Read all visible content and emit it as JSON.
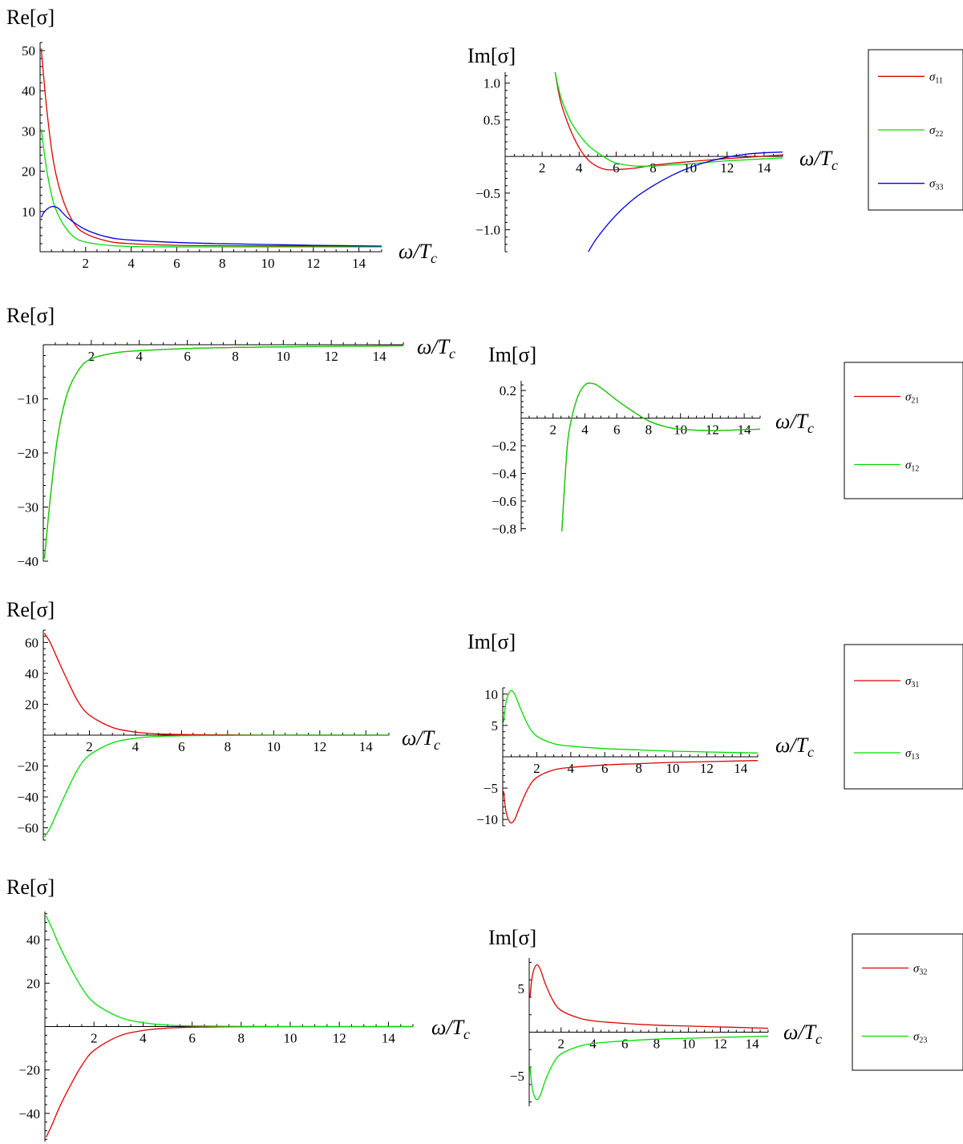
{
  "colors": {
    "red": "#dd0000",
    "green": "#00dd00",
    "blue": "#0000dd"
  },
  "chart_data": [
    {
      "id": "p1re",
      "type": "line",
      "ylabel": "Re[σ]",
      "xlabel": "ω/T_c",
      "xlim": [
        0,
        15
      ],
      "ylim": [
        0,
        52
      ],
      "xticks": [
        2,
        4,
        6,
        8,
        10,
        12,
        14
      ],
      "yticks": [
        10,
        20,
        30,
        40,
        50
      ],
      "series": [
        {
          "name": "σ11",
          "color": "#dd0000",
          "x": [
            0.05,
            0.3,
            0.6,
            1,
            1.5,
            2,
            3,
            4,
            6,
            8,
            10,
            12,
            15
          ],
          "y": [
            50.5,
            35,
            22,
            13,
            7,
            4.5,
            2.6,
            2.0,
            1.6,
            1.5,
            1.45,
            1.4,
            1.35
          ]
        },
        {
          "name": "σ22",
          "color": "#00dd00",
          "x": [
            0.05,
            0.3,
            0.6,
            1,
            1.5,
            2,
            3,
            4,
            6,
            8,
            10,
            12,
            15
          ],
          "y": [
            30.5,
            20,
            12,
            7,
            3.6,
            2.4,
            1.6,
            1.3,
            1.2,
            1.2,
            1.2,
            1.2,
            1.2
          ]
        },
        {
          "name": "σ33",
          "color": "#0000dd",
          "x": [
            0.05,
            0.2,
            0.5,
            0.8,
            1.2,
            2,
            3,
            4,
            6,
            8,
            10,
            12,
            15
          ],
          "y": [
            8.5,
            10,
            11.2,
            10.8,
            8.5,
            5.5,
            3.6,
            2.9,
            2.3,
            2.0,
            1.8,
            1.6,
            1.4
          ]
        }
      ]
    },
    {
      "id": "p1im",
      "type": "line",
      "ylabel": "Im[σ]",
      "xlabel": "ω/T_c",
      "xlim": [
        0,
        15
      ],
      "ylim": [
        -1.3,
        1.15
      ],
      "xticks": [
        2,
        4,
        6,
        8,
        10,
        12,
        14
      ],
      "yticks": [
        -1.0,
        -0.5,
        0.5,
        1.0
      ],
      "ytick_labels": [
        "−1.0",
        "−0.5",
        "0.5",
        "1.0"
      ],
      "series": [
        {
          "name": "σ11",
          "color": "#dd0000",
          "x": [
            2.7,
            3,
            3.5,
            4,
            4.5,
            5,
            5.5,
            6,
            7,
            8,
            10,
            12,
            15
          ],
          "y": [
            1.15,
            0.75,
            0.38,
            0.12,
            -0.05,
            -0.14,
            -0.18,
            -0.18,
            -0.16,
            -0.12,
            -0.07,
            -0.03,
            0.02
          ]
        },
        {
          "name": "σ22",
          "color": "#00dd00",
          "x": [
            2.7,
            3,
            3.5,
            4,
            4.5,
            5,
            5.5,
            6,
            7,
            8,
            10,
            12,
            15
          ],
          "y": [
            1.15,
            0.82,
            0.5,
            0.3,
            0.15,
            0.05,
            -0.03,
            -0.09,
            -0.13,
            -0.13,
            -0.1,
            -0.06,
            -0.02
          ]
        },
        {
          "name": "σ33",
          "color": "#0000dd",
          "x": [
            4.5,
            5,
            6,
            7,
            8,
            9,
            10,
            11,
            12,
            13,
            14,
            15
          ],
          "y": [
            -1.3,
            -1.1,
            -0.8,
            -0.57,
            -0.4,
            -0.26,
            -0.15,
            -0.07,
            -0.01,
            0.03,
            0.05,
            0.06
          ]
        }
      ]
    },
    {
      "id": "p2re",
      "type": "line",
      "ylabel": "Re[σ]",
      "xlabel": "ω/T_c",
      "xlim": [
        0,
        15
      ],
      "ylim": [
        -40,
        0
      ],
      "xticks": [
        2,
        4,
        6,
        8,
        10,
        12,
        14
      ],
      "yticks": [
        -40,
        -30,
        -20,
        -10
      ],
      "ytick_labels": [
        "−40",
        "−30",
        "−20",
        "−10"
      ],
      "series": [
        {
          "name": "σ21",
          "color": "#dd0000",
          "x": [
            0.05,
            0.3,
            0.6,
            1,
            1.5,
            2,
            3,
            4,
            6,
            8,
            10,
            12,
            15
          ],
          "y": [
            -39.5,
            -28,
            -17,
            -9,
            -4.5,
            -2.6,
            -1.5,
            -1.1,
            -0.7,
            -0.5,
            -0.4,
            -0.3,
            -0.2
          ]
        },
        {
          "name": "σ12",
          "color": "#00dd00",
          "x": [
            0.05,
            0.3,
            0.6,
            1,
            1.5,
            2,
            3,
            4,
            6,
            8,
            10,
            12,
            15
          ],
          "y": [
            -39.5,
            -28,
            -17,
            -9,
            -4.5,
            -2.6,
            -1.5,
            -1.1,
            -0.7,
            -0.5,
            -0.4,
            -0.3,
            -0.2
          ]
        }
      ]
    },
    {
      "id": "p2im",
      "type": "line",
      "ylabel": "Im[σ]",
      "xlabel": "ω/T_c",
      "xlim": [
        0,
        15
      ],
      "ylim": [
        -0.82,
        0.27
      ],
      "xticks": [
        2,
        4,
        6,
        8,
        10,
        12,
        14
      ],
      "yticks": [
        -0.8,
        -0.6,
        -0.4,
        -0.2,
        0.2
      ],
      "ytick_labels": [
        "−0.8",
        "−0.6",
        "−0.4",
        "−0.2",
        "0.2"
      ],
      "series": [
        {
          "name": "σ21",
          "color": "#dd0000",
          "x": [
            2.55,
            2.8,
            3,
            3.5,
            4,
            4.5,
            5,
            6,
            7,
            8,
            9,
            10,
            12,
            15
          ],
          "y": [
            -0.82,
            -0.35,
            -0.1,
            0.14,
            0.24,
            0.25,
            0.22,
            0.13,
            0.05,
            -0.02,
            -0.06,
            -0.08,
            -0.09,
            -0.08
          ]
        },
        {
          "name": "σ12",
          "color": "#00dd00",
          "x": [
            2.55,
            2.8,
            3,
            3.5,
            4,
            4.5,
            5,
            6,
            7,
            8,
            9,
            10,
            12,
            15
          ],
          "y": [
            -0.82,
            -0.35,
            -0.1,
            0.14,
            0.24,
            0.25,
            0.22,
            0.13,
            0.05,
            -0.02,
            -0.06,
            -0.08,
            -0.09,
            -0.08
          ]
        }
      ]
    },
    {
      "id": "p3re",
      "type": "line",
      "ylabel": "Re[σ]",
      "xlabel": "ω/T_c",
      "xlim": [
        0,
        15
      ],
      "ylim": [
        -68,
        68
      ],
      "xticks": [
        2,
        4,
        6,
        8,
        10,
        12,
        14
      ],
      "yticks": [
        -60,
        -40,
        -20,
        20,
        40,
        60
      ],
      "ytick_labels": [
        "−60",
        "−40",
        "−20",
        "20",
        "40",
        "60"
      ],
      "series": [
        {
          "name": "σ31",
          "color": "#dd0000",
          "x": [
            0.05,
            0.3,
            0.6,
            1,
            1.5,
            2,
            3,
            4,
            5,
            6,
            8,
            10,
            15
          ],
          "y": [
            66,
            60,
            50,
            37,
            22,
            13,
            5,
            2,
            0.8,
            0.4,
            0.15,
            0.05,
            0.02
          ]
        },
        {
          "name": "σ13",
          "color": "#00dd00",
          "x": [
            0.05,
            0.3,
            0.6,
            1,
            1.5,
            2,
            3,
            4,
            5,
            6,
            8,
            10,
            15
          ],
          "y": [
            -66,
            -60,
            -50,
            -37,
            -22,
            -13,
            -5,
            -2,
            -0.8,
            -0.4,
            -0.15,
            -0.05,
            -0.02
          ]
        }
      ]
    },
    {
      "id": "p3im",
      "type": "line",
      "ylabel": "Im[σ]",
      "xlabel": "ω/T_c",
      "xlim": [
        0,
        15
      ],
      "ylim": [
        -11,
        11
      ],
      "xticks": [
        2,
        4,
        6,
        8,
        10,
        12,
        14
      ],
      "yticks": [
        -10,
        -5,
        5,
        10
      ],
      "ytick_labels": [
        "−10",
        "−5",
        "5",
        "10"
      ],
      "series": [
        {
          "name": "σ31",
          "color": "#dd0000",
          "x": [
            0.05,
            0.2,
            0.45,
            0.7,
            1,
            1.5,
            2,
            3,
            4,
            6,
            8,
            10,
            15
          ],
          "y": [
            -5.5,
            -8.8,
            -10.5,
            -10,
            -8,
            -5,
            -3.3,
            -2.1,
            -1.7,
            -1.3,
            -1.1,
            -0.9,
            -0.6
          ]
        },
        {
          "name": "σ13",
          "color": "#00dd00",
          "x": [
            0.05,
            0.2,
            0.45,
            0.7,
            1,
            1.5,
            2,
            3,
            4,
            6,
            8,
            10,
            15
          ],
          "y": [
            5.5,
            8.8,
            10.5,
            10,
            8,
            5,
            3.3,
            2.1,
            1.7,
            1.3,
            1.1,
            0.9,
            0.6
          ]
        }
      ]
    },
    {
      "id": "p4re",
      "type": "line",
      "ylabel": "Re[σ]",
      "xlabel": "ω/T_c",
      "xlim": [
        0,
        15
      ],
      "ylim": [
        -53,
        53
      ],
      "xticks": [
        2,
        4,
        6,
        8,
        10,
        12,
        14
      ],
      "yticks": [
        -40,
        -20,
        20,
        40
      ],
      "ytick_labels": [
        "−40",
        "−20",
        "20",
        "40"
      ],
      "series": [
        {
          "name": "σ32",
          "color": "#dd0000",
          "x": [
            0.05,
            0.3,
            0.6,
            1,
            1.5,
            2,
            3,
            4,
            5,
            6,
            8,
            10,
            15
          ],
          "y": [
            -51,
            -45,
            -37,
            -28,
            -18,
            -11,
            -4.5,
            -1.8,
            -0.7,
            -0.3,
            -0.1,
            -0.05,
            -0.02
          ]
        },
        {
          "name": "σ23",
          "color": "#00dd00",
          "x": [
            0.05,
            0.3,
            0.6,
            1,
            1.5,
            2,
            3,
            4,
            5,
            6,
            8,
            10,
            15
          ],
          "y": [
            51,
            45,
            37,
            28,
            18,
            11,
            4.5,
            1.8,
            0.7,
            0.3,
            0.1,
            0.05,
            0.02
          ]
        }
      ]
    },
    {
      "id": "p4im",
      "type": "line",
      "ylabel": "Im[σ]",
      "xlabel": "ω/T_c",
      "xlim": [
        0,
        15
      ],
      "ylim": [
        -8.5,
        8.5
      ],
      "xticks": [
        2,
        4,
        6,
        8,
        10,
        12,
        14
      ],
      "yticks": [
        -5,
        5
      ],
      "ytick_labels": [
        "−5",
        "5"
      ],
      "series": [
        {
          "name": "σ32",
          "color": "#dd0000",
          "x": [
            0.05,
            0.2,
            0.45,
            0.7,
            1,
            1.5,
            2,
            3,
            4,
            6,
            8,
            10,
            15
          ],
          "y": [
            4,
            6.5,
            7.7,
            7.2,
            5.6,
            3.6,
            2.5,
            1.7,
            1.3,
            1.0,
            0.8,
            0.7,
            0.45
          ]
        },
        {
          "name": "σ23",
          "color": "#00dd00",
          "x": [
            0.05,
            0.2,
            0.45,
            0.7,
            1,
            1.5,
            2,
            3,
            4,
            6,
            8,
            10,
            15
          ],
          "y": [
            -4,
            -6.5,
            -7.7,
            -7.2,
            -5.6,
            -3.6,
            -2.5,
            -1.7,
            -1.3,
            -1.0,
            -0.8,
            -0.7,
            -0.45
          ]
        }
      ]
    }
  ],
  "legends": [
    {
      "for": "row1",
      "items": [
        {
          "label": "σ",
          "sub": "11",
          "color": "#dd0000"
        },
        {
          "label": "σ",
          "sub": "22",
          "color": "#00dd00"
        },
        {
          "label": "σ",
          "sub": "33",
          "color": "#0000dd"
        }
      ]
    },
    {
      "for": "row2",
      "items": [
        {
          "label": "σ",
          "sub": "21",
          "color": "#dd0000"
        },
        {
          "label": "σ",
          "sub": "12",
          "color": "#00dd00"
        }
      ]
    },
    {
      "for": "row3",
      "items": [
        {
          "label": "σ",
          "sub": "31",
          "color": "#dd0000"
        },
        {
          "label": "σ",
          "sub": "13",
          "color": "#00dd00"
        }
      ]
    },
    {
      "for": "row4",
      "items": [
        {
          "label": "σ",
          "sub": "32",
          "color": "#dd0000"
        },
        {
          "label": "σ",
          "sub": "23",
          "color": "#00dd00"
        }
      ]
    }
  ]
}
